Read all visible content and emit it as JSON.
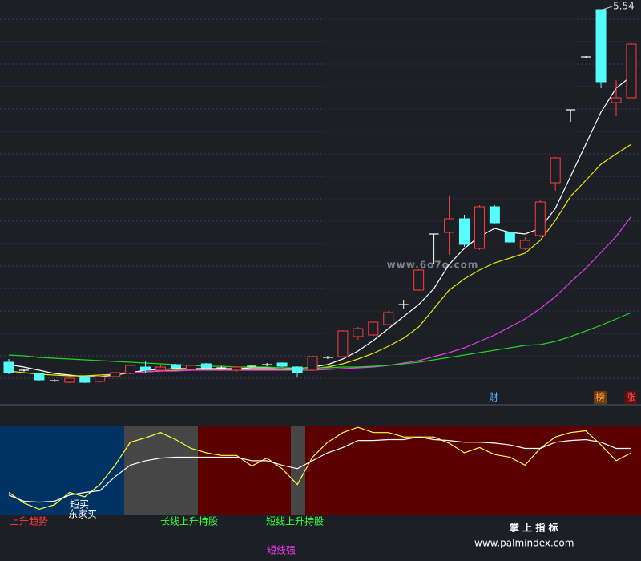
{
  "chart_data": [
    {
      "type": "candlestick",
      "ylim": [
        3.2,
        5.6
      ],
      "open": [
        3.34,
        3.29,
        3.27,
        3.225,
        3.215,
        3.25,
        3.22,
        3.25,
        3.27,
        3.31,
        3.29,
        3.325,
        3.295,
        3.33,
        3.305,
        3.29,
        3.315,
        3.325,
        3.335,
        3.31,
        3.29,
        3.37,
        3.375,
        3.5,
        3.51,
        3.575,
        3.7,
        3.79,
        4.14,
        4.15,
        4.235,
        4.05,
        4.31,
        4.15,
        4.05,
        4.13,
        4.46,
        4.915,
        5.245,
        5.54,
        4.96,
        4.99
      ],
      "close": [
        3.275,
        3.29,
        3.23,
        3.225,
        3.24,
        3.215,
        3.25,
        3.275,
        3.32,
        3.29,
        3.31,
        3.305,
        3.32,
        3.305,
        3.305,
        3.31,
        3.315,
        3.325,
        3.315,
        3.275,
        3.375,
        3.37,
        3.535,
        3.55,
        3.59,
        3.65,
        3.7,
        3.915,
        4.14,
        4.235,
        4.075,
        4.31,
        4.21,
        4.09,
        4.1,
        4.34,
        4.615,
        4.915,
        5.245,
        5.09,
        4.99,
        5.325
      ],
      "high": [
        3.36,
        3.3,
        3.275,
        3.235,
        3.245,
        3.255,
        3.255,
        3.28,
        3.325,
        3.35,
        3.32,
        3.33,
        3.325,
        3.335,
        3.315,
        3.315,
        3.325,
        3.335,
        3.34,
        3.315,
        3.38,
        3.38,
        3.54,
        3.56,
        3.6,
        3.66,
        3.73,
        3.92,
        4.14,
        4.375,
        4.26,
        4.32,
        4.32,
        4.16,
        4.12,
        4.35,
        4.62,
        4.915,
        5.25,
        5.54,
        5.1,
        5.33
      ],
      "low": [
        3.265,
        3.28,
        3.225,
        3.215,
        3.21,
        3.21,
        3.215,
        3.245,
        3.265,
        3.275,
        3.285,
        3.3,
        3.29,
        3.3,
        3.295,
        3.28,
        3.305,
        3.315,
        3.31,
        3.25,
        3.285,
        3.36,
        3.37,
        3.48,
        3.5,
        3.57,
        3.67,
        3.785,
        3.95,
        4.01,
        4.06,
        4.04,
        4.2,
        4.08,
        4.04,
        4.12,
        4.41,
        4.84,
        5.24,
        5.05,
        4.875,
        4.99
      ],
      "up_color": "#ff3c3c",
      "down_color": "#54fcfc",
      "flat_color": "#ffffff",
      "series": [
        {
          "color": "#ffffff",
          "values": [
            3.325,
            3.31,
            3.29,
            3.27,
            3.26,
            3.25,
            3.25,
            3.26,
            3.275,
            3.29,
            3.295,
            3.3,
            3.3,
            3.3,
            3.3,
            3.3,
            3.305,
            3.305,
            3.305,
            3.3,
            3.31,
            3.325,
            3.36,
            3.41,
            3.475,
            3.55,
            3.625,
            3.7,
            3.8,
            3.95,
            4.05,
            4.125,
            4.175,
            4.15,
            4.14,
            4.175,
            4.3,
            4.5,
            4.7,
            4.9,
            5.05,
            5.125
          ]
        },
        {
          "color": "#e8e800",
          "values": [
            3.285,
            3.275,
            3.265,
            3.26,
            3.255,
            3.255,
            3.26,
            3.265,
            3.275,
            3.28,
            3.285,
            3.29,
            3.29,
            3.295,
            3.295,
            3.295,
            3.295,
            3.295,
            3.295,
            3.295,
            3.3,
            3.31,
            3.33,
            3.36,
            3.395,
            3.44,
            3.49,
            3.56,
            3.675,
            3.79,
            3.86,
            3.915,
            3.96,
            3.99,
            4.02,
            4.1,
            4.225,
            4.375,
            4.475,
            4.575,
            4.64,
            4.7
          ]
        },
        {
          "color": "#e83ce8",
          "values": [
            null,
            null,
            null,
            null,
            null,
            null,
            null,
            3.27,
            3.275,
            3.28,
            3.285,
            3.285,
            3.29,
            3.29,
            3.29,
            3.29,
            3.29,
            3.29,
            3.29,
            3.29,
            3.29,
            3.295,
            3.3,
            3.305,
            3.31,
            3.32,
            3.335,
            3.35,
            3.375,
            3.4,
            3.43,
            3.47,
            3.51,
            3.56,
            3.61,
            3.675,
            3.75,
            3.84,
            3.925,
            4.025,
            4.125,
            4.25
          ]
        },
        {
          "color": "#22d422",
          "values": [
            3.385,
            3.38,
            3.37,
            3.365,
            3.36,
            3.355,
            3.35,
            3.345,
            3.34,
            3.335,
            3.33,
            3.325,
            3.32,
            3.315,
            3.315,
            3.31,
            3.31,
            3.31,
            3.305,
            3.305,
            3.305,
            3.305,
            3.31,
            3.31,
            3.315,
            3.32,
            3.33,
            3.34,
            3.355,
            3.37,
            3.385,
            3.4,
            3.415,
            3.43,
            3.445,
            3.45,
            3.47,
            3.5,
            3.535,
            3.57,
            3.61,
            3.65
          ]
        }
      ],
      "annotations": [
        "财",
        "榜",
        "涨",
        "www.6o7o.com"
      ]
    },
    {
      "type": "line",
      "ylim": [
        0,
        100
      ],
      "series": [
        {
          "color": "#ffff40",
          "values": [
            25,
            13,
            6,
            11,
            25,
            20,
            34,
            56,
            82,
            87,
            93,
            85,
            75,
            70,
            67,
            67,
            55,
            64,
            52,
            34,
            65,
            82,
            93,
            99,
            93,
            93,
            88,
            88,
            88,
            81,
            70,
            76,
            68,
            65,
            56,
            75,
            88,
            93,
            95,
            79,
            61,
            70
          ]
        },
        {
          "color": "#ffffff",
          "values": [
            22,
            15,
            14,
            15,
            22,
            25,
            27,
            43,
            56,
            61,
            64,
            65,
            65,
            65,
            65,
            65,
            61,
            61,
            56,
            52,
            61,
            70,
            76,
            84,
            84,
            85,
            85,
            88,
            85,
            84,
            82,
            82,
            81,
            79,
            75,
            75,
            82,
            84,
            85,
            82,
            75,
            75
          ]
        }
      ],
      "annotations": [
        "短买",
        "东家买",
        "上升趋势",
        "长线上升持股",
        "短线上升持股",
        "短线强",
        "掌 上 指 标",
        "www.palmindex.com"
      ]
    }
  ]
}
